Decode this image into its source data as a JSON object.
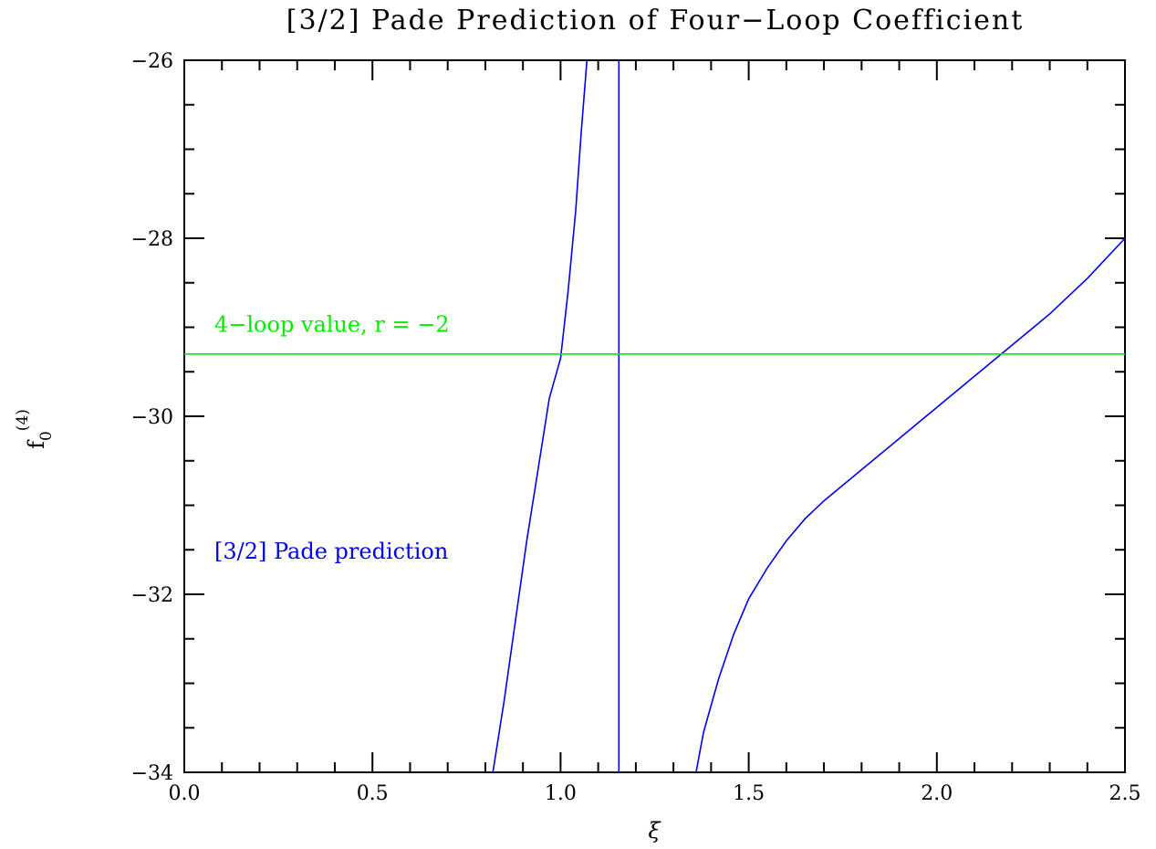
{
  "chart_data": {
    "type": "line",
    "title": "[3/2] Pade Prediction of Four−Loop Coefficient",
    "xlabel": "ξ",
    "ylabel": {
      "base": "f",
      "sub": "0",
      "sup": "(4)"
    },
    "xlim": [
      0.0,
      2.5
    ],
    "ylim": [
      -34,
      -26
    ],
    "x_ticks": [
      "0.0",
      "0.5",
      "1.0",
      "1.5",
      "2.0",
      "2.5"
    ],
    "y_ticks": [
      "−34",
      "−32",
      "−30",
      "−28",
      "−26"
    ],
    "x_tick_values": [
      0.0,
      0.5,
      1.0,
      1.5,
      2.0,
      2.5
    ],
    "y_tick_values": [
      -34,
      -32,
      -30,
      -28,
      -26
    ],
    "grid": false,
    "series": [
      {
        "name": "[3/2] Pade prediction",
        "color": "#0000ee",
        "segments": [
          [
            [
              0.82,
              -34.0
            ],
            [
              0.85,
              -33.2
            ],
            [
              0.88,
              -32.3
            ],
            [
              0.91,
              -31.4
            ],
            [
              0.94,
              -30.6
            ],
            [
              0.97,
              -29.8
            ],
            [
              1.0,
              -29.35
            ],
            [
              1.02,
              -28.6
            ],
            [
              1.04,
              -27.7
            ],
            [
              1.055,
              -26.8
            ],
            [
              1.07,
              -26.0
            ]
          ],
          [
            [
              1.155,
              -34.0
            ],
            [
              1.155,
              -26.0
            ]
          ],
          [
            [
              1.36,
              -34.0
            ],
            [
              1.38,
              -33.55
            ],
            [
              1.42,
              -32.95
            ],
            [
              1.46,
              -32.45
            ],
            [
              1.5,
              -32.05
            ],
            [
              1.55,
              -31.7
            ],
            [
              1.6,
              -31.4
            ],
            [
              1.65,
              -31.15
            ],
            [
              1.7,
              -30.95
            ],
            [
              1.8,
              -30.6
            ],
            [
              1.9,
              -30.25
            ],
            [
              2.0,
              -29.9
            ],
            [
              2.1,
              -29.55
            ],
            [
              2.2,
              -29.2
            ],
            [
              2.3,
              -28.85
            ],
            [
              2.4,
              -28.45
            ],
            [
              2.5,
              -28.0
            ]
          ]
        ]
      },
      {
        "name": "4−loop value, r = −2",
        "color": "#00ee00",
        "segments": [
          [
            [
              0.0,
              -29.3
            ],
            [
              2.5,
              -29.3
            ]
          ]
        ]
      }
    ],
    "annotations": [
      {
        "text": "4−loop value, r = −2",
        "x": 0.08,
        "y": -29.05,
        "color": "#00ee00"
      },
      {
        "text": "[3/2] Pade prediction",
        "x": 0.08,
        "y": -31.6,
        "color": "#0000ee"
      }
    ]
  }
}
